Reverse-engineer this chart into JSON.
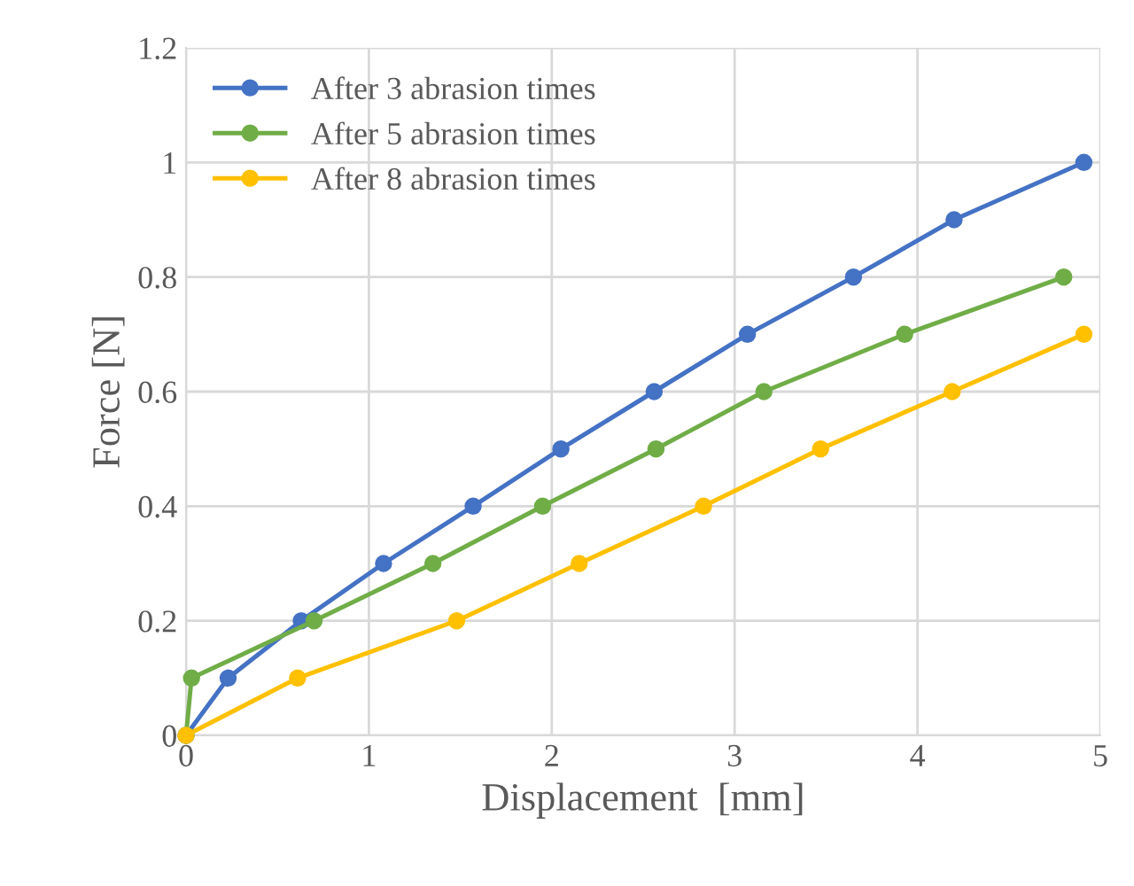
{
  "chart_data": {
    "type": "line",
    "xlabel": "Displacement  [mm]",
    "ylabel": "Force [N]",
    "xlim": [
      0,
      5
    ],
    "xticks": [
      0,
      1,
      2,
      3,
      4,
      5
    ],
    "ylim": [
      0,
      1.2
    ],
    "yticks": [
      0,
      0.2,
      0.4,
      0.6,
      0.8,
      1,
      1.2
    ],
    "grid": true,
    "legend": "top left",
    "marker": "circle",
    "line_style": "solid",
    "series": [
      {
        "name": "After 3 abrasion times",
        "color": "#4472c4",
        "x": [
          0,
          0.23,
          0.63,
          1.08,
          1.57,
          2.05,
          2.56,
          3.07,
          3.65,
          4.2,
          4.91
        ],
        "values": [
          0,
          0.1,
          0.2,
          0.3,
          0.4,
          0.5,
          0.6,
          0.7,
          0.8,
          0.9,
          1.0
        ]
      },
      {
        "name": "After 5 abrasion times",
        "color": "#70ad47",
        "x": [
          0,
          0.03,
          0.7,
          1.35,
          1.95,
          2.57,
          3.16,
          3.93,
          4.8
        ],
        "values": [
          0,
          0.1,
          0.2,
          0.3,
          0.4,
          0.5,
          0.6,
          0.7,
          0.8
        ]
      },
      {
        "name": "After 8 abrasion times",
        "color": "#ffc000",
        "x": [
          0,
          0.61,
          1.48,
          2.15,
          2.83,
          3.47,
          4.19,
          4.91
        ],
        "values": [
          0,
          0.1,
          0.2,
          0.3,
          0.4,
          0.5,
          0.6,
          0.7
        ]
      }
    ]
  }
}
